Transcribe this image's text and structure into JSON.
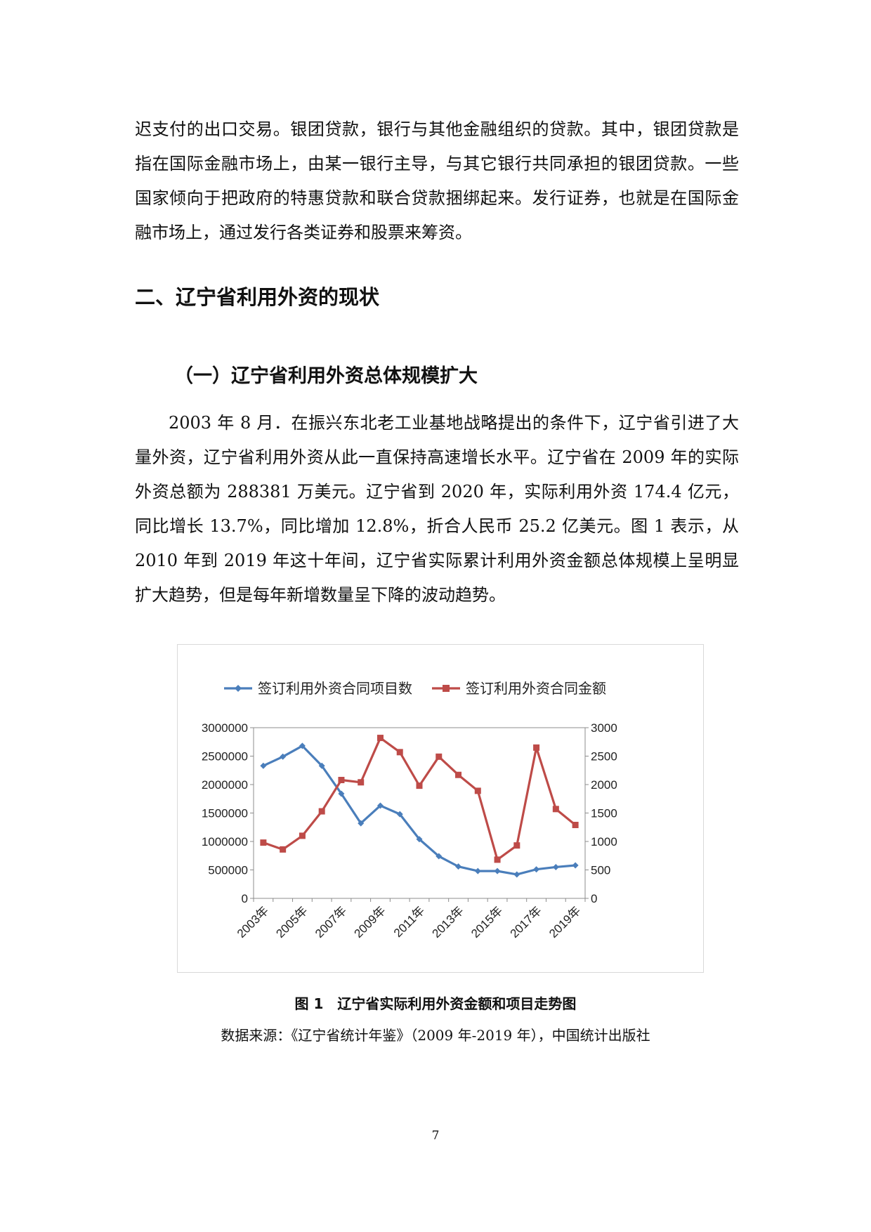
{
  "paragraphs": {
    "p1": "迟支付的出口交易。银团贷款，银行与其他金融组织的贷款。其中，银团贷款是指在国际金融市场上，由某一银行主导，与其它银行共同承担的银团贷款。一些国家倾向于把政府的特惠贷款和联合贷款捆绑起来。发行证券，也就是在国际金融市场上，通过发行各类证券和股票来筹资。",
    "p2": "2003 年 8 月．在振兴东北老工业基地战略提出的条件下，辽宁省引进了大量外资，辽宁省利用外资从此一直保持高速增长水平。辽宁省在 2009 年的实际外资总额为 288381 万美元。辽宁省到 2020 年，实际利用外资 174.4 亿元，同比增长 13.7%，同比增加 12.8%，折合人民币 25.2 亿美元。图 1 表示，从 2010 年到 2019 年这十年间，辽宁省实际累计利用外资金额总体规模上呈明显扩大趋势，但是每年新增数量呈下降的波动趋势。"
  },
  "headings": {
    "section": "二、辽宁省利用外资的现状",
    "subsection": "（一）辽宁省利用外资总体规模扩大"
  },
  "figure": {
    "caption": "图 1　辽宁省实际利用外资金额和项目走势图",
    "source": "数据来源：《辽宁省统计年鉴》（2009 年-2019 年），中国统计出版社"
  },
  "page_number": "7",
  "chart_data": {
    "type": "line",
    "title": "",
    "x": [
      "2003年",
      "2004年",
      "2005年",
      "2006年",
      "2007年",
      "2008年",
      "2009年",
      "2010年",
      "2011年",
      "2012年",
      "2013年",
      "2014年",
      "2015年",
      "2016年",
      "2017年",
      "2018年",
      "2019年"
    ],
    "x_tick_labels_shown": [
      "2003年",
      "2005年",
      "2007年",
      "2009年",
      "2011年",
      "2013年",
      "2015年",
      "2017年",
      "2019年"
    ],
    "series": [
      {
        "name": "签订利用外资合同项目数",
        "axis": "left",
        "color": "#4a7ebb",
        "marker": "diamond",
        "values": [
          2330000,
          2490000,
          2680000,
          2330000,
          1840000,
          1320000,
          1630000,
          1480000,
          1040000,
          740000,
          560000,
          480000,
          480000,
          420000,
          510000,
          550000,
          580000
        ]
      },
      {
        "name": "签订利用外资合同金额",
        "axis": "right",
        "color": "#be4b48",
        "marker": "square",
        "values": [
          980,
          860,
          1100,
          1530,
          2080,
          2040,
          2820,
          2570,
          1980,
          2490,
          2170,
          1890,
          680,
          930,
          2650,
          1570,
          1290
        ]
      }
    ],
    "y_left": {
      "lim": [
        0,
        3000000
      ],
      "ticks": [
        "0",
        "500000",
        "1000000",
        "1500000",
        "2000000",
        "2500000",
        "3000000"
      ]
    },
    "y_right": {
      "lim": [
        0,
        3000
      ],
      "ticks": [
        "0",
        "500",
        "1000",
        "1500",
        "2000",
        "2500",
        "3000"
      ]
    },
    "legend": "top",
    "grid": false
  }
}
